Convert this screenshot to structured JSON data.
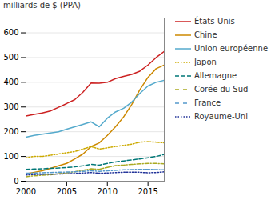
{
  "chart_data": {
    "type": "line",
    "y_label": "milliards de $ (PPA)",
    "x": [
      2000,
      2001,
      2002,
      2003,
      2004,
      2005,
      2006,
      2007,
      2008,
      2009,
      2010,
      2011,
      2012,
      2013,
      2014,
      2015,
      2016,
      2017
    ],
    "series": [
      {
        "name": "États-Unis",
        "color": "#cc2222",
        "line_style": "solid",
        "values": [
          264,
          270,
          276,
          284,
          299,
          314,
          330,
          360,
          397,
          396,
          400,
          415,
          424,
          432,
          445,
          470,
          500,
          525
        ]
      },
      {
        "name": "Chine",
        "color": "#cc8800",
        "line_style": "solid",
        "values": [
          30,
          36,
          42,
          52,
          62,
          72,
          90,
          110,
          140,
          155,
          185,
          220,
          260,
          310,
          370,
          420,
          455,
          470
        ]
      },
      {
        "name": "Union européenne",
        "color": "#55aacc",
        "line_style": "solid",
        "values": [
          178,
          185,
          190,
          195,
          200,
          210,
          220,
          230,
          240,
          220,
          255,
          280,
          295,
          320,
          355,
          385,
          400,
          408
        ]
      },
      {
        "name": "Japon",
        "color": "#ccaa00",
        "line_style": "dotted",
        "values": [
          95,
          100,
          100,
          105,
          110,
          115,
          120,
          130,
          140,
          130,
          135,
          140,
          145,
          150,
          158,
          160,
          158,
          155
        ]
      },
      {
        "name": "Allemagne",
        "color": "#007777",
        "line_style": "dashed",
        "values": [
          48,
          49,
          50,
          52,
          53,
          55,
          58,
          62,
          68,
          65,
          72,
          78,
          82,
          86,
          90,
          95,
          100,
          108
        ]
      },
      {
        "name": "Corée du Sud",
        "color": "#aaaa22",
        "line_style": "dashdot",
        "values": [
          18,
          22,
          24,
          26,
          30,
          34,
          38,
          44,
          50,
          48,
          56,
          63,
          65,
          68,
          70,
          72,
          72,
          70
        ]
      },
      {
        "name": "France",
        "color": "#5599cc",
        "line_style": "dashdot",
        "values": [
          32,
          33,
          34,
          35,
          36,
          37,
          38,
          40,
          42,
          40,
          42,
          44,
          46,
          47,
          48,
          48,
          47,
          46
        ]
      },
      {
        "name": "Royaume-Uni",
        "color": "#223399",
        "line_style": "dotted",
        "values": [
          25,
          27,
          28,
          28,
          29,
          30,
          31,
          33,
          35,
          32,
          33,
          35,
          36,
          36,
          36,
          34,
          35,
          38
        ]
      }
    ],
    "xlim": [
      2000,
      2017
    ],
    "xticks": [
      2000,
      2005,
      2010,
      2015
    ],
    "ylim": [
      0,
      660
    ],
    "yticks": [
      0,
      100,
      200,
      300,
      400,
      500,
      600
    ],
    "grid": true,
    "legend": "right"
  }
}
